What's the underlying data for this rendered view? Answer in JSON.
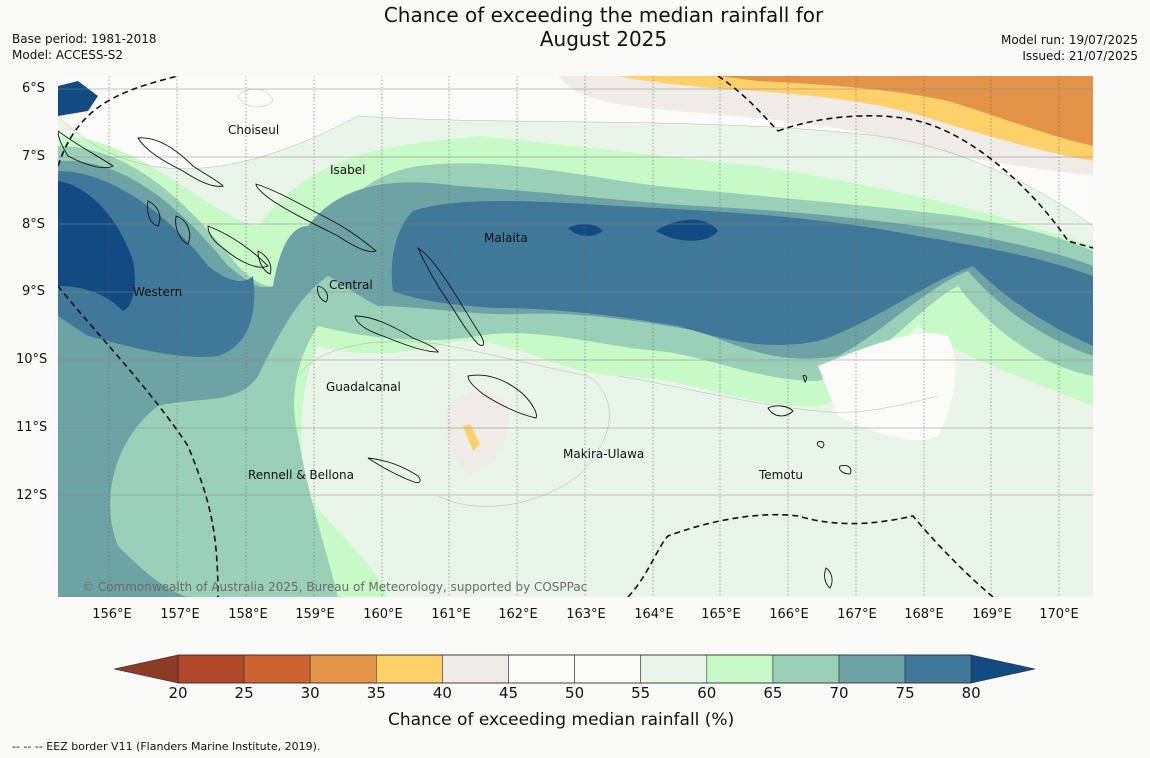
{
  "title_line1": "Chance of exceeding the median rainfall for",
  "title_line2": "August 2025",
  "base_period": "Base period: 1981-2018",
  "model": "Model: ACCESS-S2",
  "model_run": "Model run: 19/07/2025",
  "issued": "Issued: 21/07/2025",
  "lat_labels": [
    "6°S",
    "7°S",
    "8°S",
    "9°S",
    "10°S",
    "11°S",
    "12°S"
  ],
  "lon_labels": [
    "156°E",
    "157°E",
    "158°E",
    "159°E",
    "160°E",
    "161°E",
    "162°E",
    "163°E",
    "164°E",
    "165°E",
    "166°E",
    "167°E",
    "168°E",
    "169°E",
    "170°E"
  ],
  "places": {
    "choiseul": "Choiseul",
    "isabel": "Isabel",
    "malaita": "Malaita",
    "central": "Central",
    "western": "Western",
    "guadalcanal": "Guadalcanal",
    "makira": "Makira-Ulawa",
    "temotu": "Temotu",
    "rennell": "Rennell & Bellona"
  },
  "copyright": "© Commonwealth of Australia 2025, Bureau of Meteorology, supported by COSPPac",
  "colorbar": {
    "title": "Chance of exceeding median rainfall (%)",
    "ticks": [
      "20",
      "25",
      "30",
      "35",
      "40",
      "45",
      "50",
      "55",
      "60",
      "65",
      "70",
      "75",
      "80"
    ],
    "colors": [
      "#8e3a24",
      "#b0462a",
      "#cd6430",
      "#e39448",
      "#fed06a",
      "#efebe6",
      "#fbfcfa",
      "#fbfcfa",
      "#eaf5ea",
      "#c8fac8",
      "#9bd0b8",
      "#6da3a4",
      "#3f7899",
      "#124a82"
    ]
  },
  "footer": "--  --  -- EEZ border V11 (Flanders Marine Institute, 2019)."
}
